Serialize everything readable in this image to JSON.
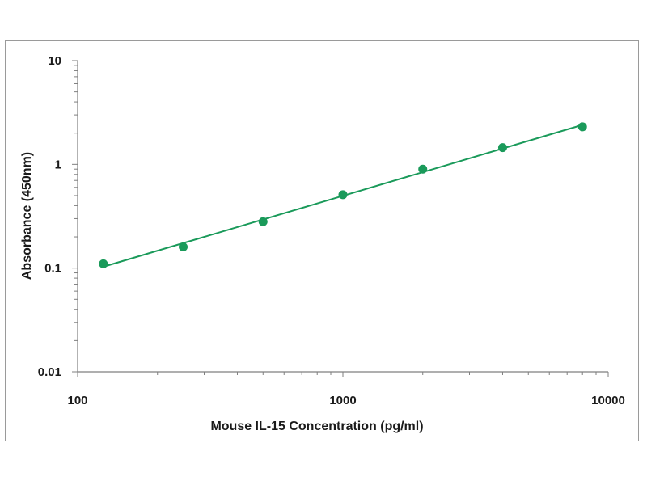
{
  "chart_data": {
    "type": "scatter",
    "xlabel": "Mouse IL-15 Concentration (pg/ml)",
    "ylabel": "Absorbance (450nm)",
    "xscale": "log",
    "yscale": "log",
    "xlim": [
      100,
      10000
    ],
    "ylim": [
      0.01,
      10
    ],
    "xticks": [
      100,
      1000,
      10000
    ],
    "xtick_labels": [
      "100",
      "1000",
      "10000"
    ],
    "yticks": [
      0.01,
      0.1,
      1,
      10
    ],
    "ytick_labels": [
      "0.01",
      "0.1",
      "1",
      "10"
    ],
    "grid": false,
    "legend": "none",
    "trendline": "power fit",
    "color": "#1a9a5a",
    "series": [
      {
        "x": [
          125,
          250,
          500,
          1000,
          2000,
          4000,
          8000
        ],
        "y": [
          0.11,
          0.16,
          0.28,
          0.51,
          0.9,
          1.45,
          2.3
        ]
      }
    ]
  }
}
